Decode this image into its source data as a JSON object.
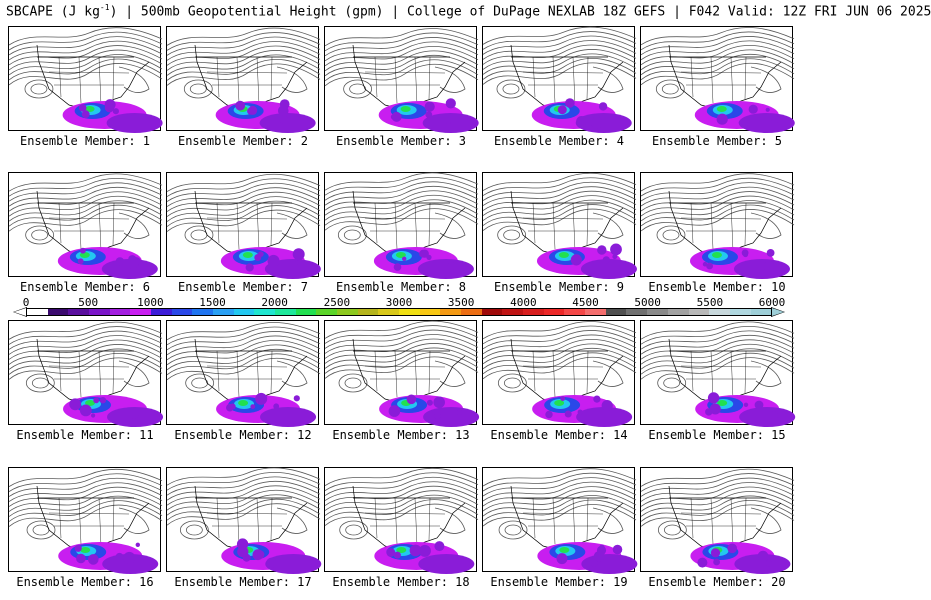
{
  "title": {
    "field": "SBCAPE (J kg",
    "exp": "-1",
    "rest": ") | 500mb Geopotential Height (gpm) | College of DuPage NEXLAB 18Z GEFS | F042 Valid: 12Z FRI JUN 06 2025"
  },
  "panels": [
    {
      "label": "Ensemble Member: 1"
    },
    {
      "label": "Ensemble Member: 2"
    },
    {
      "label": "Ensemble Member: 3"
    },
    {
      "label": "Ensemble Member: 4"
    },
    {
      "label": "Ensemble Member: 5"
    },
    {
      "label": "Ensemble Member: 6"
    },
    {
      "label": "Ensemble Member: 7"
    },
    {
      "label": "Ensemble Member: 8"
    },
    {
      "label": "Ensemble Member: 9"
    },
    {
      "label": "Ensemble Member: 10"
    },
    {
      "label": "Ensemble Member: 11"
    },
    {
      "label": "Ensemble Member: 12"
    },
    {
      "label": "Ensemble Member: 13"
    },
    {
      "label": "Ensemble Member: 14"
    },
    {
      "label": "Ensemble Member: 15"
    },
    {
      "label": "Ensemble Member: 16"
    },
    {
      "label": "Ensemble Member: 17"
    },
    {
      "label": "Ensemble Member: 18"
    },
    {
      "label": "Ensemble Member: 19"
    },
    {
      "label": "Ensemble Member: 20"
    }
  ],
  "colorbar": {
    "ticks": [
      "0",
      "500",
      "1000",
      "1500",
      "2000",
      "2500",
      "3000",
      "3500",
      "4000",
      "4500",
      "5000",
      "5500",
      "6000"
    ],
    "colors": [
      "#ffffff",
      "#3b0a6e",
      "#5a0f9e",
      "#7a14c8",
      "#a31ee0",
      "#c81ef0",
      "#3c1cd8",
      "#2a48e8",
      "#1f74f0",
      "#2aa0f4",
      "#23c8f0",
      "#20e6d0",
      "#1ee89a",
      "#22e050",
      "#5ad428",
      "#8cc81e",
      "#b4b41c",
      "#d8c81a",
      "#f0e014",
      "#f8c814",
      "#f49a14",
      "#ec6e14",
      "#a00a0a",
      "#c01414",
      "#d81e1e",
      "#ec2828",
      "#f44848",
      "#f46e6e",
      "#505050",
      "#707070",
      "#8a8a8a",
      "#a2a2a2",
      "#b8b8b8",
      "#c8d8dc",
      "#b0d8e0",
      "#9ecfd8"
    ]
  },
  "map_colors": {
    "contour": "#5a5a5a",
    "border": "#000000",
    "cape_low": "#8a1cd8",
    "cape_mid": "#c81ef0",
    "cape_blue": "#2a48e8",
    "cape_cyan": "#23c8f0",
    "cape_green": "#22e050"
  }
}
